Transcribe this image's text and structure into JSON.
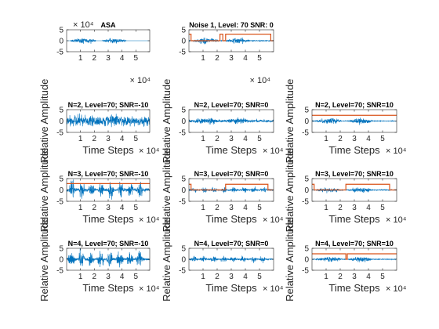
{
  "chart_data": [
    {
      "type": "line",
      "title": "ASA",
      "xlabel": "",
      "ylabel": "",
      "multiplier": "× 10⁴",
      "xticks": [
        "1",
        "2",
        "3",
        "4",
        "5"
      ],
      "yticks": [
        "5",
        "0",
        "-5"
      ],
      "xlim": [
        0,
        60000
      ],
      "ylim": [
        -5,
        5
      ],
      "noise": 0,
      "on_segments": [
        [
          3000,
          21000
        ],
        [
          26000,
          43000
        ]
      ],
      "amp": 1.1,
      "series": [
        {
          "values": []
        }
      ]
    },
    {
      "type": "line",
      "title": "Noise 1, Level: 70 SNR: 0",
      "xlabel": "",
      "ylabel": "",
      "multiplier": "× 10⁴",
      "xticks": [
        "1",
        "2",
        "3",
        "4",
        "5"
      ],
      "yticks": [
        "5",
        "0",
        "-5"
      ],
      "xlim": [
        0,
        60000
      ],
      "ylim": [
        -5,
        5
      ],
      "noise": 0.15,
      "on_segments": [
        [
          3000,
          21000
        ],
        [
          26000,
          43000
        ]
      ],
      "amp": 1.1,
      "steps": [
        [
          0,
          3.0
        ],
        [
          1500,
          3.0
        ],
        [
          1500,
          0
        ],
        [
          22000,
          0
        ],
        [
          22000,
          3.0
        ],
        [
          24000,
          3.0
        ],
        [
          24000,
          0
        ],
        [
          26000,
          0
        ],
        [
          26000,
          3.0
        ],
        [
          58000,
          3.0
        ],
        [
          58000,
          0
        ],
        [
          60000,
          0
        ]
      ],
      "series": [
        {
          "values": []
        },
        {
          "values": []
        }
      ]
    },
    {
      "type": "line",
      "title": "N=2, Level=70; SNR=-10",
      "xlabel": "Time Steps",
      "ylabel": "Relative Amplitude",
      "multiplier": "× 10⁴",
      "xticks": [
        "1",
        "2",
        "3",
        "4",
        "5"
      ],
      "yticks": [
        "5",
        "0",
        "-5"
      ],
      "xlim": [
        0,
        60000
      ],
      "ylim": [
        -5,
        5
      ],
      "noise": 1.8,
      "on_segments": [
        [
          3000,
          21000
        ],
        [
          26000,
          43000
        ]
      ],
      "amp": 1.1,
      "series": [
        {
          "values": []
        }
      ]
    },
    {
      "type": "line",
      "title": "N=2, Level=70; SNR=0",
      "xlabel": "Time Steps",
      "ylabel": "Relative Amplitude",
      "multiplier": "× 10⁴",
      "xticks": [
        "1",
        "2",
        "3",
        "4",
        "5"
      ],
      "yticks": [
        "5",
        "0",
        "-5"
      ],
      "xlim": [
        0,
        60000
      ],
      "ylim": [
        -5,
        5
      ],
      "noise": 0.5,
      "on_segments": [
        [
          3000,
          21000
        ],
        [
          26000,
          43000
        ]
      ],
      "amp": 1.1,
      "series": [
        {
          "values": []
        }
      ]
    },
    {
      "type": "line",
      "title": "N=2, Level=70; SNR=10",
      "xlabel": "Time Steps",
      "ylabel": "Relative Amplitude",
      "multiplier": "× 10⁴",
      "xticks": [
        "1",
        "2",
        "3",
        "4",
        "5"
      ],
      "yticks": [
        "5",
        "0",
        "-5"
      ],
      "xlim": [
        0,
        60000
      ],
      "ylim": [
        -5,
        5
      ],
      "noise": 0.15,
      "on_segments": [
        [
          3000,
          21000
        ],
        [
          26000,
          43000
        ]
      ],
      "amp": 1.1,
      "steps": [
        [
          0,
          2.5
        ],
        [
          60000,
          2.5
        ]
      ],
      "series": [
        {
          "values": []
        },
        {
          "values": []
        }
      ]
    },
    {
      "type": "line",
      "title": "N=3, Level=70; SNR=-10",
      "xlabel": "Time Steps",
      "ylabel": "Relative Amplitude",
      "multiplier": "× 10⁴",
      "xticks": [
        "1",
        "2",
        "3",
        "4",
        "5"
      ],
      "yticks": [
        "5",
        "0",
        "-5"
      ],
      "xlim": [
        0,
        60000
      ],
      "ylim": [
        -5,
        5
      ],
      "noise": 0.6,
      "on_segments": [
        [
          2000,
          6000
        ],
        [
          9000,
          13000
        ],
        [
          16000,
          20000
        ],
        [
          23000,
          27000
        ],
        [
          30000,
          34000
        ],
        [
          37000,
          41000
        ],
        [
          44000,
          48000
        ],
        [
          51000,
          55000
        ]
      ],
      "amp": 3.5,
      "steps": [
        [
          0,
          2.8
        ],
        [
          60000,
          2.8
        ]
      ],
      "series": [
        {
          "values": []
        },
        {
          "values": []
        }
      ]
    },
    {
      "type": "line",
      "title": "N=3, Level=70; SNR=0",
      "xlabel": "Time Steps",
      "ylabel": "Relative Amplitude",
      "multiplier": "× 10⁴",
      "xticks": [
        "1",
        "2",
        "3",
        "4",
        "5"
      ],
      "yticks": [
        "5",
        "0",
        "-5"
      ],
      "xlim": [
        0,
        60000
      ],
      "ylim": [
        -5,
        5
      ],
      "noise": 0.3,
      "on_segments": [
        [
          2000,
          6000
        ],
        [
          9000,
          13000
        ],
        [
          16000,
          20000
        ],
        [
          23000,
          27000
        ],
        [
          30000,
          34000
        ],
        [
          37000,
          41000
        ],
        [
          44000,
          48000
        ],
        [
          51000,
          55000
        ]
      ],
      "amp": 1.2,
      "steps": [
        [
          0,
          2.5
        ],
        [
          1500,
          2.5
        ],
        [
          1500,
          0
        ],
        [
          26000,
          0
        ],
        [
          26000,
          2.5
        ],
        [
          56000,
          2.5
        ],
        [
          56000,
          0
        ],
        [
          60000,
          0
        ]
      ],
      "series": [
        {
          "values": []
        },
        {
          "values": []
        }
      ]
    },
    {
      "type": "line",
      "title": "N=3, Level=70; SNR=10",
      "xlabel": "Time Steps",
      "ylabel": "Relative Amplitude",
      "multiplier": "× 10⁴",
      "xticks": [
        "1",
        "2",
        "3",
        "4",
        "5"
      ],
      "yticks": [
        "5",
        "0",
        "-5"
      ],
      "xlim": [
        0,
        60000
      ],
      "ylim": [
        -5,
        5
      ],
      "noise": 0.15,
      "on_segments": [
        [
          3000,
          21000
        ],
        [
          26000,
          43000
        ]
      ],
      "amp": 1.0,
      "steps": [
        [
          0,
          2.5
        ],
        [
          1500,
          2.5
        ],
        [
          1500,
          0
        ],
        [
          24000,
          0
        ],
        [
          24000,
          2.5
        ],
        [
          55000,
          2.5
        ],
        [
          55000,
          0
        ],
        [
          60000,
          0
        ]
      ],
      "series": [
        {
          "values": []
        },
        {
          "values": []
        }
      ]
    },
    {
      "type": "line",
      "title": "N=4, Level=70; SNR=-10",
      "xlabel": "Time Steps",
      "ylabel": "Relative Amplitude",
      "multiplier": "× 10⁴",
      "xticks": [
        "1",
        "2",
        "3",
        "4",
        "5"
      ],
      "yticks": [
        "5",
        "0",
        "-5"
      ],
      "xlim": [
        0,
        60000
      ],
      "ylim": [
        -5,
        5
      ],
      "noise": 0.5,
      "on_segments": [
        [
          1000,
          6000
        ],
        [
          8000,
          13000
        ],
        [
          15000,
          20000
        ],
        [
          22000,
          27000
        ],
        [
          29000,
          34000
        ],
        [
          36000,
          41000
        ],
        [
          43000,
          48000
        ],
        [
          50000,
          55000
        ]
      ],
      "amp": 3.3,
      "series": [
        {
          "values": []
        }
      ]
    },
    {
      "type": "line",
      "title": "N=4, Level=70; SNR=0",
      "xlabel": "Time Steps",
      "ylabel": "Relative Amplitude",
      "multiplier": "× 10⁴",
      "xticks": [
        "1",
        "2",
        "3",
        "4",
        "5"
      ],
      "yticks": [
        "5",
        "0",
        "-5"
      ],
      "xlim": [
        0,
        60000
      ],
      "ylim": [
        -5,
        5
      ],
      "noise": 0.3,
      "on_segments": [
        [
          1000,
          6000
        ],
        [
          8000,
          13000
        ],
        [
          15000,
          20000
        ],
        [
          22000,
          27000
        ],
        [
          29000,
          34000
        ],
        [
          36000,
          41000
        ],
        [
          43000,
          48000
        ],
        [
          50000,
          55000
        ]
      ],
      "amp": 1.1,
      "series": [
        {
          "values": []
        }
      ]
    },
    {
      "type": "line",
      "title": "N=4, Level=70; SNR=10",
      "xlabel": "Time Steps",
      "ylabel": "Relative Amplitude",
      "multiplier": "× 10⁴",
      "xticks": [
        "1",
        "2",
        "3",
        "4",
        "5"
      ],
      "yticks": [
        "5",
        "0",
        "-5"
      ],
      "xlim": [
        0,
        60000
      ],
      "ylim": [
        -5,
        5
      ],
      "noise": 0.15,
      "on_segments": [
        [
          3000,
          21000
        ],
        [
          26000,
          43000
        ]
      ],
      "amp": 1.0,
      "steps": [
        [
          0,
          2.5
        ],
        [
          24000,
          2.5
        ],
        [
          24000,
          0
        ],
        [
          25000,
          0
        ],
        [
          25000,
          2.5
        ],
        [
          60000,
          2.5
        ]
      ],
      "series": [
        {
          "values": []
        },
        {
          "values": []
        }
      ]
    }
  ],
  "colors": {
    "signal": "#0072BD",
    "step": "#D95319",
    "axis": "#262626"
  }
}
